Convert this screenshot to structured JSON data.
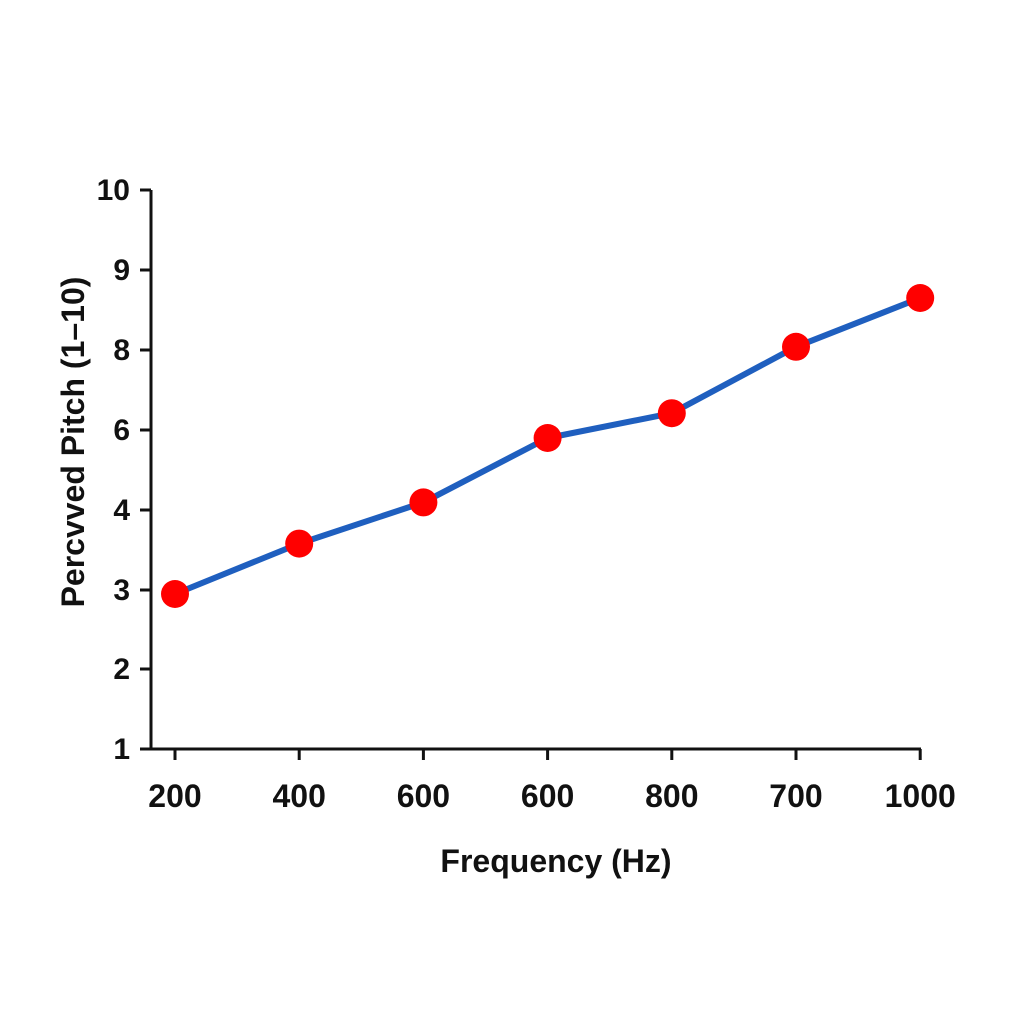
{
  "chart_data": {
    "type": "line",
    "title": "",
    "xlabel": "Frequency (Hz)",
    "ylabel": "Percvved Pitch (1–10)",
    "categories": [
      "200",
      "400",
      "600",
      "600",
      "800",
      "700",
      "1000"
    ],
    "y_ticks": [
      "1",
      "2",
      "3",
      "4",
      "6",
      "8",
      "9",
      "10"
    ],
    "series": [
      {
        "values": [
          2.95,
          3.58,
          4.19,
          5.8,
          6.42,
          8.04,
          8.65
        ]
      }
    ],
    "line_color": "#1f5fbf",
    "marker_color": "#ff0000",
    "grid": false,
    "legend": "none"
  }
}
